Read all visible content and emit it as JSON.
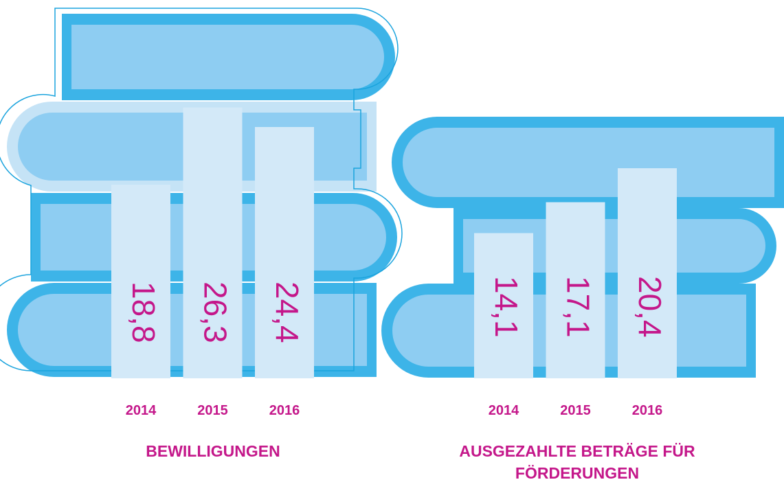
{
  "chart_data": [
    {
      "type": "bar",
      "title": "BEWILLIGUNGEN",
      "categories": [
        "2014",
        "2015",
        "2016"
      ],
      "values": [
        18.8,
        26.3,
        24.4
      ],
      "value_labels": [
        "18,8",
        "26,3",
        "24,4"
      ],
      "color": "#d3e9f8",
      "ylim": [
        0,
        36
      ]
    },
    {
      "type": "bar",
      "title": "AUSGEZAHLTE BETRÄGE FÜR FÖRDERUNGEN",
      "categories": [
        "2014",
        "2015",
        "2016"
      ],
      "values": [
        14.1,
        17.1,
        20.4
      ],
      "value_labels": [
        "14,1",
        "17,1",
        "20,4"
      ],
      "color": "#d3e9f8",
      "ylim": [
        0,
        36
      ]
    }
  ]
}
